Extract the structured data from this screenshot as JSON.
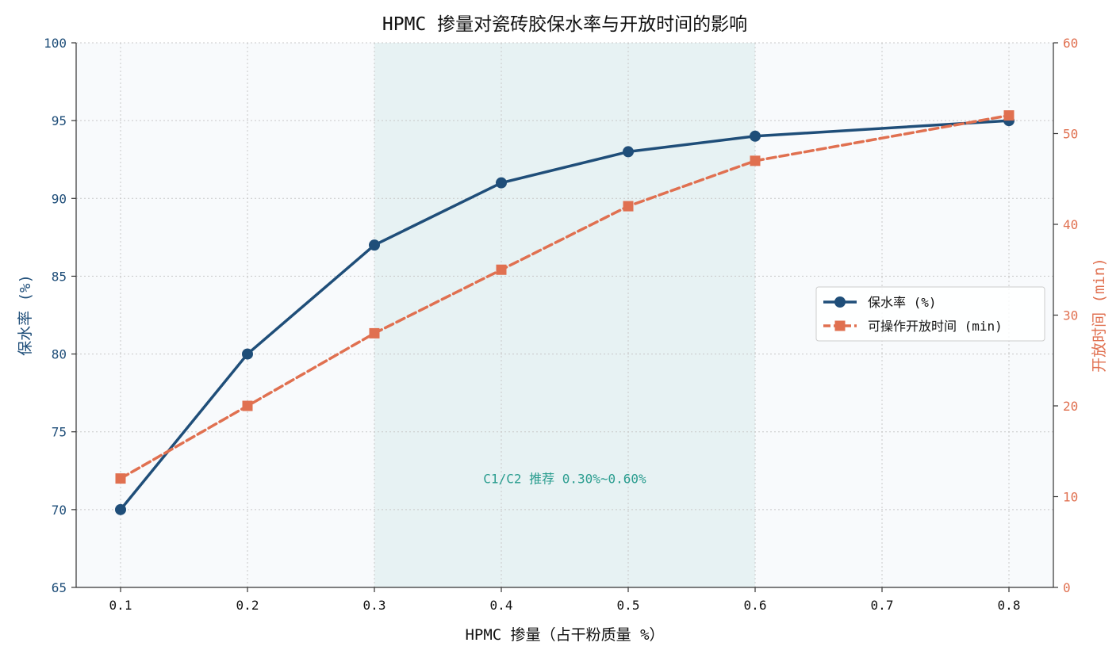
{
  "chart_data": {
    "type": "line",
    "title": "HPMC 掺量对瓷砖胶保水率与开放时间的影响",
    "xlabel": "HPMC 掺量（占干粉质量 %）",
    "ylabel_left": "保水率 (%)",
    "ylabel_right": "开放时间 (min)",
    "x": [
      0.1,
      0.2,
      0.3,
      0.4,
      0.5,
      0.6,
      0.7,
      0.8
    ],
    "x_ticks": [
      "0.1",
      "0.2",
      "0.3",
      "0.4",
      "0.5",
      "0.6",
      "0.7",
      "0.8"
    ],
    "xlim": [
      0.065,
      0.835
    ],
    "ylim_left": [
      65,
      100
    ],
    "ylim_right": [
      0,
      60
    ],
    "y_ticks_left": [
      "65",
      "70",
      "75",
      "80",
      "85",
      "90",
      "95",
      "100"
    ],
    "y_ticks_right": [
      "0",
      "10",
      "20",
      "30",
      "40",
      "50",
      "60"
    ],
    "grid": true,
    "legend_position": "center-right",
    "series": [
      {
        "name": "保水率 (%)",
        "axis": "left",
        "color": "#1f4e79",
        "marker": "circle",
        "line_style": "solid",
        "x": [
          0.1,
          0.2,
          0.3,
          0.4,
          0.5,
          0.6,
          0.8
        ],
        "values": [
          70,
          80,
          87,
          91,
          93,
          94,
          95
        ]
      },
      {
        "name": "可操作开放时间 (min)",
        "axis": "right",
        "color": "#e07050",
        "marker": "square",
        "line_style": "dashed",
        "x": [
          0.1,
          0.2,
          0.3,
          0.4,
          0.5,
          0.6,
          0.8
        ],
        "values": [
          12,
          20,
          28,
          35,
          42,
          47,
          52
        ]
      }
    ],
    "shaded_region": {
      "x_range": [
        0.3,
        0.6
      ],
      "color": "#2a9d8f",
      "label": "C1/C2 推荐 0.30%~0.60%",
      "label_x": 0.45,
      "label_y": 72
    }
  }
}
